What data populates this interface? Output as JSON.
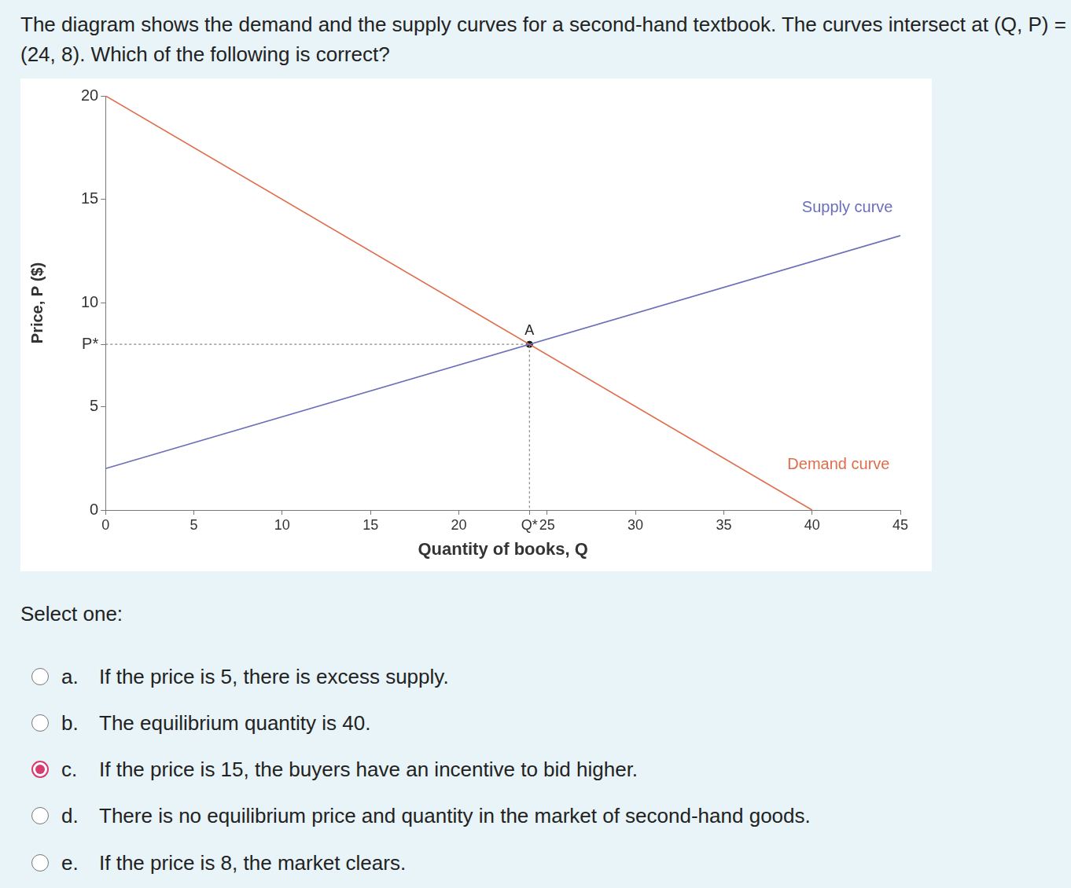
{
  "question": "The diagram shows the demand and the supply curves for a second-hand textbook. The curves intersect at (Q, P) = (24, 8). Which of the following is correct?",
  "chart_data": {
    "type": "line",
    "x_label": "Quantity of books, Q",
    "y_label": "Price, P ($)",
    "xlim": [
      0,
      45
    ],
    "ylim": [
      0,
      20
    ],
    "xticks": [
      0,
      5,
      10,
      15,
      20,
      {
        "value": 24,
        "label": "Q*"
      },
      25,
      30,
      35,
      40,
      45
    ],
    "yticks": [
      0,
      5,
      {
        "value": 8,
        "label": "P*"
      },
      10,
      15,
      20
    ],
    "grid": false,
    "series": [
      {
        "name": "Supply curve",
        "color": "#6a6fb8",
        "x": [
          0,
          45
        ],
        "values": [
          2,
          13.25
        ],
        "label_at": {
          "x": 42,
          "y": 14.6
        }
      },
      {
        "name": "Demand curve",
        "color": "#e06c4c",
        "x": [
          0,
          40
        ],
        "values": [
          20,
          0
        ],
        "label_at": {
          "x": 41.5,
          "y": 2.2
        }
      }
    ],
    "equilibrium": {
      "x": 24,
      "y": 8,
      "label": "A"
    }
  },
  "prompt": "Select one:",
  "options": [
    {
      "letter": "a.",
      "text": "If the price is 5, there is excess supply."
    },
    {
      "letter": "b.",
      "text": "The equilibrium quantity is 40."
    },
    {
      "letter": "c.",
      "text": "If the price is 15, the buyers have an incentive to bid higher."
    },
    {
      "letter": "d.",
      "text": "There is no equilibrium price and quantity in the market of second-hand goods."
    },
    {
      "letter": "e.",
      "text": "If the price is 8, the market clears."
    }
  ],
  "selected": "c."
}
